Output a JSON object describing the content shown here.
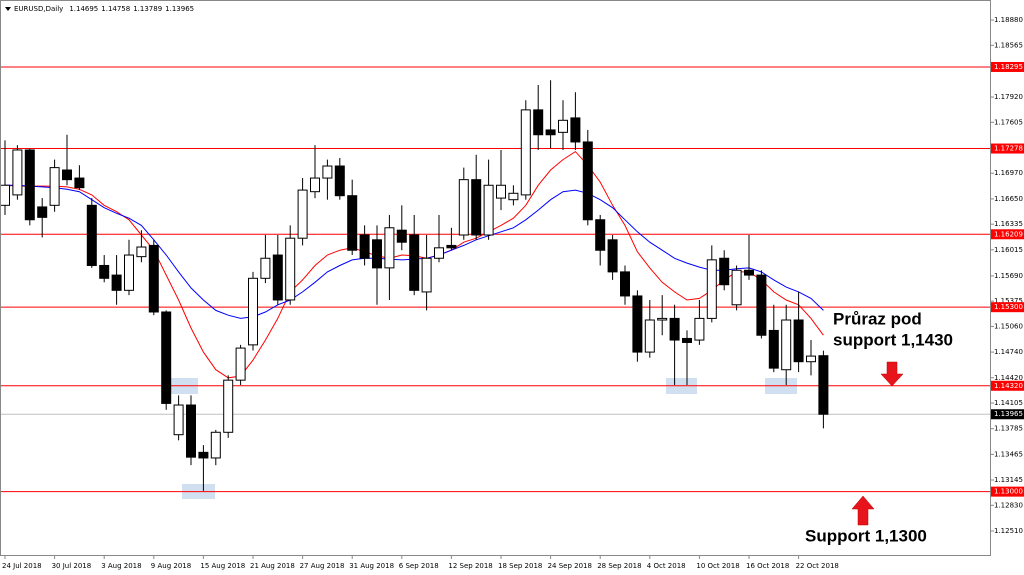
{
  "chart_data": {
    "type": "candlestick",
    "symbol": "EURUSD,Daily",
    "categories": [
      "24 Jul 2018",
      null,
      null,
      null,
      "30 Jul 2018",
      null,
      null,
      null,
      "3 Aug 2018",
      null,
      null,
      null,
      "9 Aug 2018",
      null,
      null,
      null,
      "15 Aug 2018",
      null,
      null,
      null,
      "21 Aug 2018",
      null,
      null,
      null,
      "27 Aug 2018",
      null,
      null,
      null,
      "31 Aug 2018",
      null,
      null,
      null,
      "6 Sep 2018",
      null,
      null,
      null,
      "12 Sep 2018",
      null,
      null,
      null,
      "18 Sep 2018",
      null,
      null,
      null,
      "24 Sep 2018",
      null,
      null,
      null,
      "28 Sep 2018",
      null,
      null,
      null,
      "4 Oct 2018",
      null,
      null,
      null,
      "10 Oct 2018",
      null,
      null,
      null,
      "16 Oct 2018",
      null,
      null,
      null,
      "22 Oct 2018",
      null,
      null
    ],
    "open": [
      1.1657,
      1.167,
      1.1726,
      1.1655,
      1.1657,
      1.1701,
      1.1691,
      1.1657,
      1.1582,
      1.157,
      1.1551,
      1.1593,
      1.1607,
      1.1524,
      1.1371,
      1.1408,
      1.1349,
      1.1342,
      1.1374,
      1.1439,
      1.1483,
      1.1566,
      1.1595,
      1.1539,
      1.1616,
      1.1674,
      1.1691,
      1.1706,
      1.1669,
      1.162,
      1.1614,
      1.1579,
      1.1626,
      1.162,
      1.1549,
      1.1591,
      1.1607,
      1.162,
      1.1689,
      1.162,
      1.1666,
      1.1664,
      1.167,
      1.1776,
      1.1751,
      1.1748,
      1.1766,
      1.1736,
      1.1639,
      1.1614,
      1.1574,
      1.1544,
      1.1474,
      1.1514,
      1.1516,
      1.1491,
      1.1489,
      1.1516,
      1.1591,
      1.1533,
      1.1576,
      1.157,
      1.1501,
      1.1452,
      1.1514,
      1.1462,
      1.14695
    ],
    "high": [
      1.1738,
      1.1732,
      1.1728,
      1.1666,
      1.1714,
      1.1745,
      1.1707,
      1.1666,
      1.1595,
      1.1595,
      1.1614,
      1.1626,
      1.1614,
      1.1526,
      1.142,
      1.142,
      1.1358,
      1.1377,
      1.1445,
      1.1483,
      1.1574,
      1.162,
      1.162,
      1.1632,
      1.1691,
      1.1732,
      1.1714,
      1.1716,
      1.1689,
      1.1632,
      1.1632,
      1.1645,
      1.1657,
      1.1645,
      1.162,
      1.1645,
      1.1629,
      1.1704,
      1.172,
      1.1714,
      1.1726,
      1.1682,
      1.1788,
      1.1807,
      1.1813,
      1.1788,
      1.1798,
      1.1751,
      1.1645,
      1.162,
      1.1582,
      1.1551,
      1.1539,
      1.1545,
      1.1533,
      1.1501,
      1.1539,
      1.1607,
      1.1601,
      1.1582,
      1.162,
      1.1576,
      1.1533,
      1.1533,
      1.1549,
      1.1489,
      1.14758
    ],
    "low": [
      1.1645,
      1.1664,
      1.1632,
      1.1617,
      1.1649,
      1.1682,
      1.1676,
      1.1579,
      1.1561,
      1.1533,
      1.1545,
      1.1586,
      1.152,
      1.1402,
      1.1364,
      1.1333,
      1.1301,
      1.1333,
      1.1367,
      1.1433,
      1.1476,
      1.156,
      1.1533,
      1.1533,
      1.1607,
      1.1666,
      1.1664,
      1.1664,
      1.1595,
      1.1582,
      1.1533,
      1.1539,
      1.1601,
      1.1545,
      1.1526,
      1.1586,
      1.1601,
      1.1614,
      1.1614,
      1.1614,
      1.1651,
      1.1657,
      1.1664,
      1.1726,
      1.1728,
      1.1726,
      1.1726,
      1.1632,
      1.1582,
      1.1564,
      1.1533,
      1.1462,
      1.1467,
      1.1495,
      1.1433,
      1.1433,
      1.1483,
      1.1511,
      1.1551,
      1.1526,
      1.1564,
      1.1491,
      1.1449,
      1.1433,
      1.1449,
      1.1445,
      1.13789
    ],
    "close": [
      1.1682,
      1.1726,
      1.1639,
      1.1642,
      1.1704,
      1.1689,
      1.1679,
      1.1582,
      1.1566,
      1.1551,
      1.1595,
      1.1605,
      1.1524,
      1.141,
      1.1408,
      1.1343,
      1.1342,
      1.1374,
      1.1439,
      1.1479,
      1.1566,
      1.1591,
      1.1539,
      1.1616,
      1.1676,
      1.1691,
      1.1706,
      1.1669,
      1.1601,
      1.1591,
      1.1579,
      1.1629,
      1.1611,
      1.1551,
      1.1591,
      1.1604,
      1.1604,
      1.1689,
      1.162,
      1.1682,
      1.1682,
      1.1672,
      1.1776,
      1.1745,
      1.1745,
      1.1763,
      1.1736,
      1.1639,
      1.1601,
      1.1574,
      1.1544,
      1.1474,
      1.1514,
      1.1516,
      1.1489,
      1.1486,
      1.1516,
      1.1589,
      1.1558,
      1.1576,
      1.157,
      1.1495,
      1.1454,
      1.1514,
      1.1462,
      1.1469,
      1.13965
    ],
    "up_color": "#ffffff",
    "down_color": "#000000",
    "lines": [
      {
        "color": "#ff0000",
        "values": [
          1.1682,
          1.1681,
          1.1681,
          1.1681,
          1.1681,
          1.168,
          1.1677,
          1.167,
          1.1657,
          1.1649,
          1.1639,
          1.162,
          1.1601,
          1.157,
          1.1539,
          1.1504,
          1.1474,
          1.1452,
          1.1442,
          1.1444,
          1.1464,
          1.1489,
          1.1516,
          1.1549,
          1.1564,
          1.1582,
          1.1595,
          1.1601,
          1.1604,
          1.1599,
          1.1594,
          1.1591,
          1.1595,
          1.1594,
          1.1591,
          1.1595,
          1.1601,
          1.1611,
          1.1616,
          1.1624,
          1.1632,
          1.1641,
          1.1657,
          1.1682,
          1.1701,
          1.1714,
          1.1724,
          1.1707,
          1.1686,
          1.1657,
          1.1632,
          1.1599,
          1.1579,
          1.1561,
          1.1549,
          1.1539,
          1.1541,
          1.1551,
          1.1564,
          1.1574,
          1.1574,
          1.1564,
          1.1549,
          1.1539,
          1.1533,
          1.1516,
          1.1495
        ]
      },
      {
        "color": "#0000ff",
        "values": [
          1.1682,
          1.1682,
          1.1681,
          1.168,
          1.1679,
          1.1677,
          1.1674,
          1.1664,
          1.1654,
          1.1647,
          1.1641,
          1.1632,
          1.1614,
          1.1595,
          1.1574,
          1.1554,
          1.1539,
          1.1526,
          1.152,
          1.1516,
          1.1518,
          1.1524,
          1.1533,
          1.1539,
          1.1549,
          1.1561,
          1.1574,
          1.1582,
          1.1589,
          1.1591,
          1.1591,
          1.159,
          1.1589,
          1.159,
          1.1591,
          1.1595,
          1.1601,
          1.1607,
          1.1614,
          1.1619,
          1.1624,
          1.1629,
          1.1639,
          1.1651,
          1.1664,
          1.1674,
          1.1676,
          1.1672,
          1.1664,
          1.1654,
          1.1639,
          1.1624,
          1.1611,
          1.1601,
          1.1591,
          1.1585,
          1.158,
          1.1576,
          1.1576,
          1.1578,
          1.1579,
          1.1574,
          1.1564,
          1.1555,
          1.1549,
          1.1541,
          1.1526
        ]
      }
    ],
    "ylim": [
      1.1221,
      1.1913
    ],
    "yticks": [
      {
        "value": 1.1888,
        "label": "1.18880"
      },
      1.18565,
      {
        "value": 1.1792,
        "label": "1.17920"
      },
      1.17605,
      {
        "value": 1.1697,
        "label": "1.16970"
      },
      {
        "value": 1.1665,
        "label": "1.16650"
      },
      1.16335,
      1.16015,
      {
        "value": 1.1569,
        "label": "1.15690"
      },
      1.15375,
      {
        "value": 1.1506,
        "label": "1.15060"
      },
      {
        "value": 1.1474,
        "label": "1.14740"
      },
      {
        "value": 1.1442,
        "label": "1.14420"
      },
      1.14105,
      1.13785,
      1.13465,
      1.13145,
      {
        "value": 1.1283,
        "label": "1.12830"
      },
      {
        "value": 1.1251,
        "label": "1.12510"
      }
    ],
    "levels": [
      1.18295,
      1.17278,
      1.16209,
      {
        "value": 1.153,
        "label": "1.15300"
      },
      {
        "value": 1.1432,
        "label": "1.14320"
      },
      {
        "value": 1.13,
        "label": "1.13000"
      }
    ],
    "level_color": "#ff0000",
    "bid": 1.13965,
    "annotations": [
      "Průraz pod",
      "support 1,1430",
      "Support 1,1300"
    ]
  }
}
